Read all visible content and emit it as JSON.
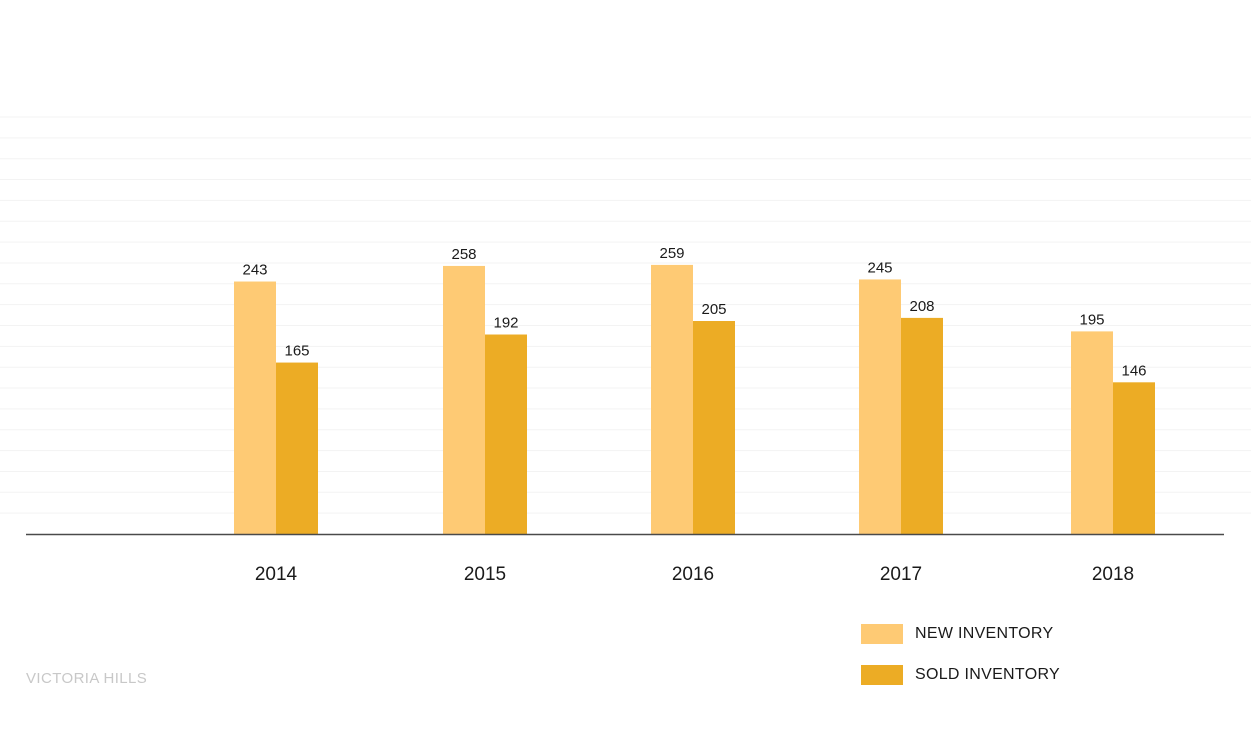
{
  "chart_data": {
    "type": "bar",
    "categories": [
      "2014",
      "2015",
      "2016",
      "2017",
      "2018"
    ],
    "series": [
      {
        "name": "NEW INVENTORY",
        "color": "#FECA74",
        "values": [
          243,
          258,
          259,
          245,
          195
        ]
      },
      {
        "name": "SOLD INVENTORY",
        "color": "#ECAC25",
        "values": [
          165,
          192,
          205,
          208,
          146
        ]
      }
    ],
    "ylim": [
      0,
      400
    ],
    "grid": true,
    "legend": "bottom-right"
  },
  "source_label": "VICTORIA HILLS"
}
